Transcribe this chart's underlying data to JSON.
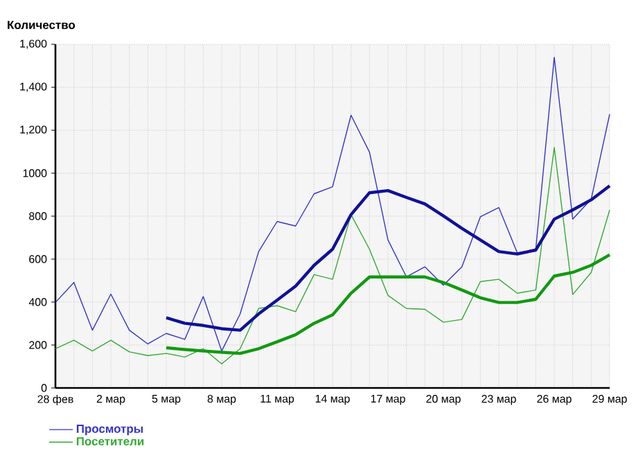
{
  "chart_data": {
    "type": "line",
    "ylabel": "Количество",
    "categories": [
      "28 фев",
      null,
      null,
      "2 мар",
      null,
      null,
      "5 мар",
      null,
      null,
      "8 мар",
      null,
      null,
      "11 мар",
      null,
      null,
      "14 мар",
      null,
      null,
      "17 мар",
      null,
      null,
      "20 мар",
      null,
      null,
      "23 мар",
      null,
      null,
      "26 мар",
      null,
      null,
      "29 мар"
    ],
    "series": [
      {
        "name": "Просмотры",
        "color": "#3333cc",
        "values": [
          398,
          491,
          269,
          437,
          269,
          205,
          254,
          226,
          426,
          172,
          345,
          635,
          775,
          754,
          904,
          937,
          1270,
          1098,
          689,
          517,
          564,
          478,
          564,
          797,
          840,
          629,
          646,
          1540,
          786,
          879,
          1275
        ]
      },
      {
        "name": "Посетители",
        "color": "#33aa33",
        "values": [
          183,
          222,
          172,
          222,
          168,
          151,
          161,
          144,
          183,
          112,
          183,
          370,
          383,
          355,
          528,
          506,
          807,
          646,
          431,
          370,
          366,
          306,
          319,
          495,
          506,
          441,
          456,
          1120,
          435,
          538,
          829
        ]
      },
      {
        "color": "#10109a",
        "values": [
          null,
          null,
          null,
          null,
          null,
          null,
          327,
          301,
          291,
          276,
          269,
          345,
          409,
          474,
          571,
          646,
          807,
          909,
          919,
          887,
          857,
          801,
          743,
          689,
          635,
          624,
          642,
          786,
          829,
          876,
          941
        ]
      },
      {
        "color": "#119911",
        "values": [
          null,
          null,
          null,
          null,
          null,
          null,
          187,
          179,
          172,
          166,
          161,
          183,
          215,
          248,
          301,
          340,
          441,
          517,
          517,
          517,
          517,
          491,
          456,
          420,
          398,
          398,
          413,
          521,
          538,
          571,
          620
        ]
      }
    ],
    "ylim": [
      0,
      1600
    ],
    "yticks": [
      0,
      200,
      400,
      600,
      800,
      1000,
      {
        "value": 1200,
        "label": "1,200"
      },
      {
        "value": 1400,
        "label": "1,400"
      },
      {
        "value": 1600,
        "label": "1,600"
      }
    ],
    "grid": true,
    "legend": "bottom",
    "marker": "none",
    "line_style": "solid"
  }
}
